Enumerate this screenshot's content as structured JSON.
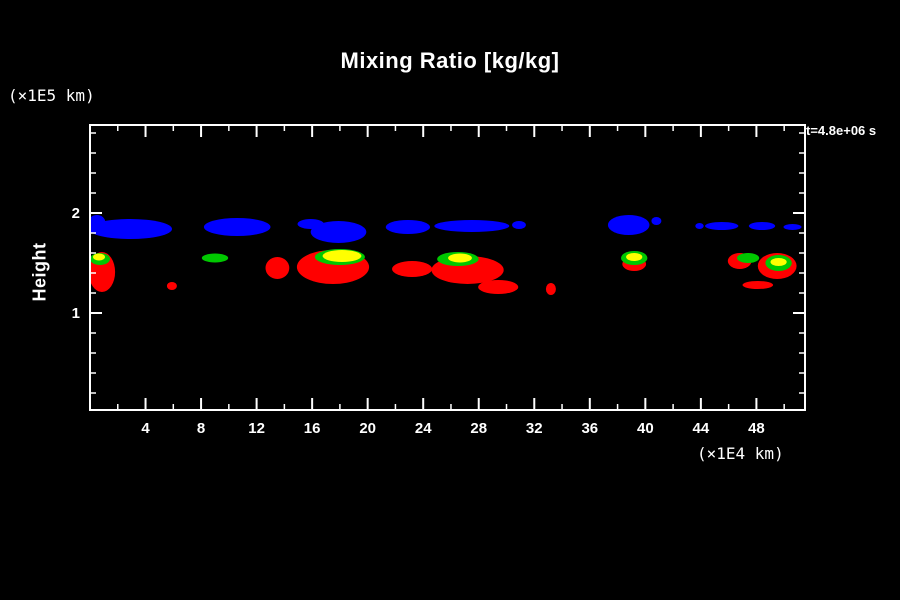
{
  "colors": {
    "background": "#000000",
    "axis": "#ffffff",
    "blue": "#0000ff",
    "red": "#ff0000",
    "green": "#00c800",
    "yellow": "#ffff00"
  },
  "chart_data": {
    "type": "contour",
    "title": "Mixing Ratio [kg/kg]",
    "xlabel": "(×1E4 km)",
    "ylabel": "Height",
    "y_unit": "(×1E5 km)",
    "time_annotation": "t=4.8e+06 s",
    "xlim": [
      0,
      51.5
    ],
    "ylim": [
      0.03,
      2.88
    ],
    "x_ticks": [
      4,
      8,
      12,
      16,
      20,
      24,
      28,
      32,
      36,
      40,
      44,
      48
    ],
    "x_minor_ticks": [
      2,
      6,
      10,
      14,
      18,
      22,
      26,
      30,
      34,
      38,
      42,
      46,
      50
    ],
    "y_ticks": [
      1,
      2
    ],
    "y_minor_ticks": [
      0.2,
      0.4,
      0.6,
      0.8,
      1.2,
      1.4,
      1.6,
      1.8,
      2.2,
      2.4,
      2.6,
      2.8
    ],
    "grid": false,
    "legend": "none",
    "regions": [
      {
        "color": "blue",
        "x": 0.5,
        "y": 1.91,
        "rx": 0.6,
        "ry": 0.07
      },
      {
        "color": "blue",
        "x": 2.9,
        "y": 1.84,
        "rx": 3.0,
        "ry": 0.1
      },
      {
        "color": "blue",
        "x": 10.6,
        "y": 1.86,
        "rx": 2.4,
        "ry": 0.09
      },
      {
        "color": "blue",
        "x": 15.9,
        "y": 1.89,
        "rx": 0.95,
        "ry": 0.05
      },
      {
        "color": "blue",
        "x": 17.9,
        "y": 1.81,
        "rx": 2.0,
        "ry": 0.11
      },
      {
        "color": "blue",
        "x": 22.9,
        "y": 1.86,
        "rx": 1.6,
        "ry": 0.07
      },
      {
        "color": "blue",
        "x": 27.5,
        "y": 1.87,
        "rx": 2.7,
        "ry": 0.06
      },
      {
        "color": "blue",
        "x": 30.9,
        "y": 1.88,
        "rx": 0.5,
        "ry": 0.04
      },
      {
        "color": "blue",
        "x": 38.8,
        "y": 1.88,
        "rx": 1.5,
        "ry": 0.1
      },
      {
        "color": "blue",
        "x": 40.8,
        "y": 1.92,
        "rx": 0.36,
        "ry": 0.04
      },
      {
        "color": "blue",
        "x": 43.9,
        "y": 1.87,
        "rx": 0.3,
        "ry": 0.03
      },
      {
        "color": "blue",
        "x": 45.5,
        "y": 1.87,
        "rx": 1.2,
        "ry": 0.04
      },
      {
        "color": "blue",
        "x": 48.4,
        "y": 1.87,
        "rx": 0.95,
        "ry": 0.04
      },
      {
        "color": "blue",
        "x": 50.6,
        "y": 1.86,
        "rx": 0.65,
        "ry": 0.03
      },
      {
        "color": "red",
        "x": 0.86,
        "y": 1.41,
        "rx": 0.95,
        "ry": 0.2
      },
      {
        "color": "red",
        "x": 5.9,
        "y": 1.27,
        "rx": 0.36,
        "ry": 0.04
      },
      {
        "color": "red",
        "x": 13.5,
        "y": 1.45,
        "rx": 0.86,
        "ry": 0.11
      },
      {
        "color": "red",
        "x": 17.5,
        "y": 1.46,
        "rx": 2.6,
        "ry": 0.17
      },
      {
        "color": "red",
        "x": 23.2,
        "y": 1.44,
        "rx": 1.45,
        "ry": 0.08
      },
      {
        "color": "red",
        "x": 27.2,
        "y": 1.43,
        "rx": 2.6,
        "ry": 0.14
      },
      {
        "color": "red",
        "x": 29.4,
        "y": 1.26,
        "rx": 1.45,
        "ry": 0.07
      },
      {
        "color": "red",
        "x": 33.2,
        "y": 1.24,
        "rx": 0.36,
        "ry": 0.06
      },
      {
        "color": "red",
        "x": 39.2,
        "y": 1.49,
        "rx": 0.86,
        "ry": 0.07
      },
      {
        "color": "red",
        "x": 46.8,
        "y": 1.52,
        "rx": 0.86,
        "ry": 0.08
      },
      {
        "color": "red",
        "x": 49.5,
        "y": 1.47,
        "rx": 1.4,
        "ry": 0.13
      },
      {
        "color": "red",
        "x": 48.1,
        "y": 1.28,
        "rx": 1.1,
        "ry": 0.04
      },
      {
        "color": "green",
        "x": 0.72,
        "y": 1.54,
        "rx": 0.72,
        "ry": 0.06
      },
      {
        "color": "green",
        "x": 9.0,
        "y": 1.55,
        "rx": 0.95,
        "ry": 0.045
      },
      {
        "color": "green",
        "x": 18.0,
        "y": 1.56,
        "rx": 1.8,
        "ry": 0.08
      },
      {
        "color": "green",
        "x": 26.5,
        "y": 1.54,
        "rx": 1.5,
        "ry": 0.07
      },
      {
        "color": "green",
        "x": 39.2,
        "y": 1.55,
        "rx": 0.95,
        "ry": 0.07
      },
      {
        "color": "green",
        "x": 47.4,
        "y": 1.55,
        "rx": 0.8,
        "ry": 0.05
      },
      {
        "color": "green",
        "x": 49.6,
        "y": 1.5,
        "rx": 0.95,
        "ry": 0.08
      },
      {
        "color": "yellow",
        "x": 0.65,
        "y": 1.56,
        "rx": 0.43,
        "ry": 0.035
      },
      {
        "color": "yellow",
        "x": 18.15,
        "y": 1.57,
        "rx": 1.4,
        "ry": 0.06
      },
      {
        "color": "yellow",
        "x": 26.65,
        "y": 1.55,
        "rx": 0.86,
        "ry": 0.045
      },
      {
        "color": "yellow",
        "x": 39.2,
        "y": 1.56,
        "rx": 0.58,
        "ry": 0.04
      },
      {
        "color": "yellow",
        "x": 49.6,
        "y": 1.51,
        "rx": 0.58,
        "ry": 0.04
      }
    ]
  }
}
